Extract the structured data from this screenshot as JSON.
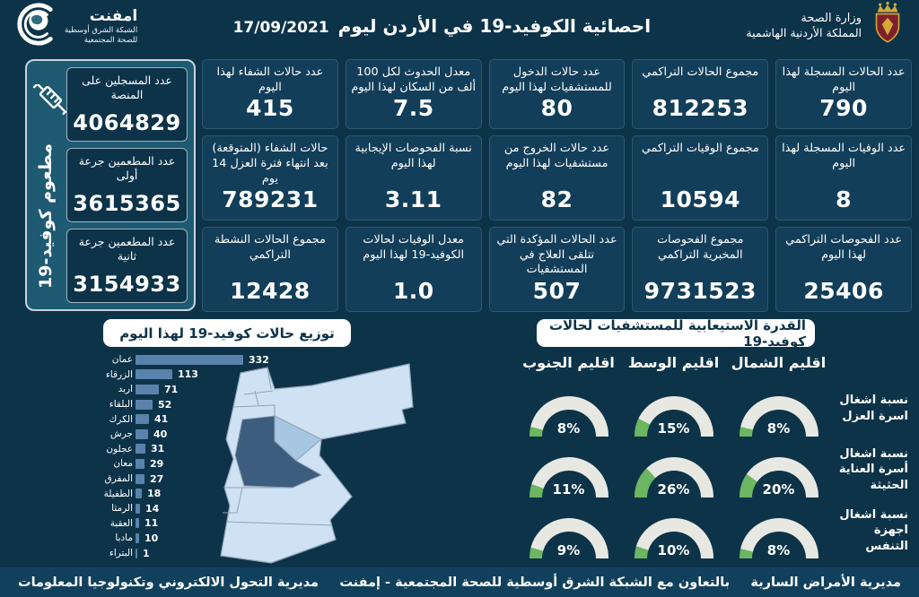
{
  "header": {
    "ministry": {
      "line1": "وزارة الصحة",
      "line2": "المملكة الأردنية الهاشمية"
    },
    "title": "احصائية الكوفيد-19 في الأردن ليوم",
    "date": "17/09/2021",
    "emphnet": {
      "name": "امفنت",
      "sub1": "الشبكة الشرق أوسطية",
      "sub2": "للصحة المجتمعية"
    }
  },
  "vaccine_panel": {
    "side_label": "مطعوم كوفيد-19",
    "cards": [
      {
        "label": "عدد المسجلين على المنصة",
        "value": "4064829"
      },
      {
        "label": "عدد المطعمين جرعة أولى",
        "value": "3615365"
      },
      {
        "label": "عدد المطعمين جرعة ثانية",
        "value": "3154933"
      }
    ]
  },
  "stats": {
    "cards": [
      {
        "label": "عدد الحالات المسجلة لهذا اليوم",
        "value": "790"
      },
      {
        "label": "مجموع الحالات التراكمي",
        "value": "812253"
      },
      {
        "label": "عدد حالات الدخول للمستشفيات لهذا اليوم",
        "value": "80"
      },
      {
        "label": "معدل الحدوث لكل 100 ألف من السكان لهذا اليوم",
        "value": "7.5"
      },
      {
        "label": "عدد حالات الشفاء لهذا اليوم",
        "value": "415"
      },
      {
        "label": "عدد الوفيات المسجلة لهذا اليوم",
        "value": "8"
      },
      {
        "label": "مجموع الوفيات التراكمي",
        "value": "10594"
      },
      {
        "label": "عدد حالات الخروج من مستشفيات لهذا اليوم",
        "value": "82"
      },
      {
        "label": "نسبة الفحوصات الإيجابية لهذا اليوم",
        "value": "3.11"
      },
      {
        "label": "حالات الشفاء (المتوقعة) بعد انتهاء فترة العزل 14 يوم",
        "value": "789231"
      },
      {
        "label": "عدد الفحوصات التراكمي لهذا اليوم",
        "value": "25406"
      },
      {
        "label": "مجموع الفحوصات المخبرية التراكمي",
        "value": "9731523"
      },
      {
        "label": "عدد الحالات المؤكدة التي تتلقى العلاج في المستشفيات",
        "value": "507"
      },
      {
        "label": "معدل الوفيات لحالات الكوفيد-19 لهذا اليوم",
        "value": "1.0"
      },
      {
        "label": "مجموع الحالات النشطة التراكمي",
        "value": "12428"
      }
    ]
  },
  "chart_data": [
    {
      "type": "bar",
      "orientation": "horizontal",
      "title": "توزيع حالات كوفيد-19 لهذا اليوم",
      "categories": [
        "عمان",
        "الزرقاء",
        "اربد",
        "البلقاء",
        "الكرك",
        "جرش",
        "عجلون",
        "معان",
        "المفرق",
        "الطفيلة",
        "الرمثا",
        "العقبة",
        "مادبا",
        "البتراء"
      ],
      "values": [
        332,
        113,
        71,
        52,
        41,
        40,
        31,
        29,
        27,
        18,
        14,
        11,
        10,
        1
      ],
      "bar_color": "#5b82ab",
      "value_labels": true,
      "grid": false
    },
    {
      "type": "gauge",
      "title": "القدرة الاستيعابية للمستشفيات لحالات كوفيد-19",
      "columns_left_to_right": [
        "اقليم الجنوب",
        "اقليم الوسط",
        "اقليم الشمال"
      ],
      "rows": [
        "نسبة اشغال اسرة العزل",
        "نسبة اشغال أسرة العناية الحثيثة",
        "نسبة اشغال اجهزة التنفس"
      ],
      "values_percent": [
        [
          8,
          15,
          8
        ],
        [
          11,
          26,
          20
        ],
        [
          9,
          10,
          8
        ]
      ],
      "fill_color": "#6cb561",
      "track_color": "#e8e8e2",
      "range": [
        0,
        100
      ]
    }
  ],
  "footer": {
    "right": "مديرية الأمراض السارية",
    "center": "بالتعاون مع الشبكة الشرق أوسطية للصحة المجتمعية - إمفنت",
    "left": "مديرية التحول الالكتروني وتكنولوجيا المعلومات"
  },
  "colors": {
    "page_bg": "#0d3349",
    "card_bg": "#123e59",
    "panel_bg": "#1e5a72",
    "bar": "#5b82ab",
    "gauge_fill": "#6cb561",
    "gauge_track": "#e8e8e2",
    "map_light": "#cfe2f4",
    "map_amman": "#3d5d7e",
    "map_zarqa": "#a6c6e2"
  }
}
